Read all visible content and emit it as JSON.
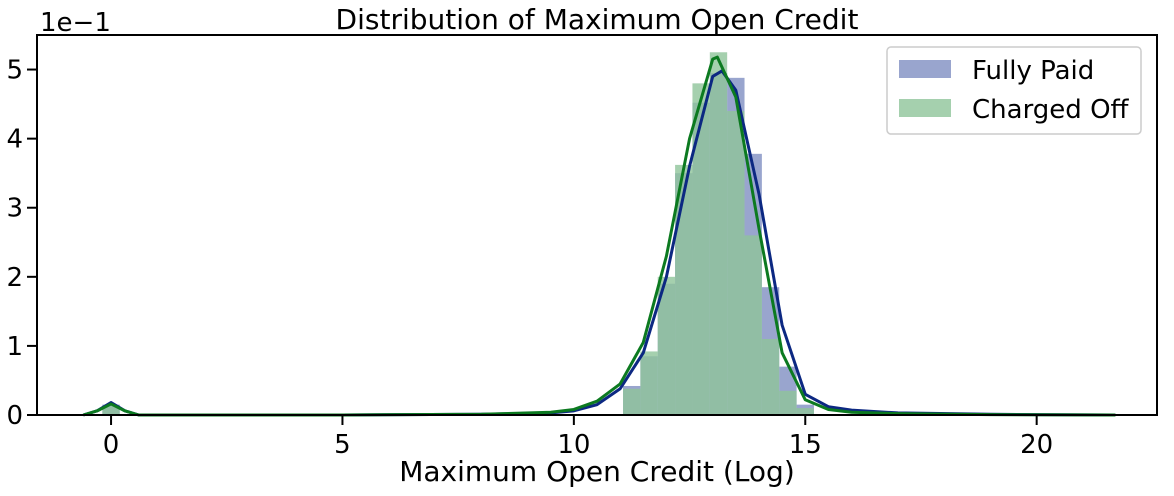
{
  "chart_data": {
    "type": "histogram",
    "title": "Distribution of Maximum Open Credit",
    "xlabel": "Maximum Open Credit (Log)",
    "ylabel": "",
    "y_offset_label": "1e−1",
    "xlim": [
      -1.6,
      22.6
    ],
    "ylim": [
      0,
      5.5
    ],
    "x_ticks": [
      0,
      5,
      10,
      15,
      20
    ],
    "y_ticks": [
      0,
      1,
      2,
      3,
      4,
      5
    ],
    "grid": false,
    "legend_position": "top-right",
    "series": [
      {
        "name": "Fully Paid",
        "color": "#7f8fc2",
        "kde_color": "#0c2882",
        "bin_width": 0.375,
        "bins": [
          {
            "x": 0.0,
            "y": 0.15
          },
          {
            "x": 11.25,
            "y": 0.42
          },
          {
            "x": 11.625,
            "y": 0.85
          },
          {
            "x": 12.0,
            "y": 1.9
          },
          {
            "x": 12.375,
            "y": 3.5
          },
          {
            "x": 12.75,
            "y": 4.52
          },
          {
            "x": 13.125,
            "y": 4.95
          },
          {
            "x": 13.5,
            "y": 4.88
          },
          {
            "x": 13.875,
            "y": 3.78
          },
          {
            "x": 14.25,
            "y": 1.85
          },
          {
            "x": 14.625,
            "y": 0.7
          },
          {
            "x": 15.0,
            "y": 0.15
          }
        ],
        "kde": [
          {
            "x": -0.6,
            "y": 0.0
          },
          {
            "x": -0.3,
            "y": 0.06
          },
          {
            "x": 0.0,
            "y": 0.18
          },
          {
            "x": 0.3,
            "y": 0.06
          },
          {
            "x": 0.6,
            "y": 0.0
          },
          {
            "x": 5.0,
            "y": 0.0
          },
          {
            "x": 8.0,
            "y": 0.01
          },
          {
            "x": 9.5,
            "y": 0.03
          },
          {
            "x": 10.0,
            "y": 0.06
          },
          {
            "x": 10.5,
            "y": 0.15
          },
          {
            "x": 11.0,
            "y": 0.38
          },
          {
            "x": 11.5,
            "y": 0.9
          },
          {
            "x": 12.0,
            "y": 2.0
          },
          {
            "x": 12.5,
            "y": 3.6
          },
          {
            "x": 13.0,
            "y": 4.9
          },
          {
            "x": 13.2,
            "y": 4.98
          },
          {
            "x": 13.5,
            "y": 4.7
          },
          {
            "x": 14.0,
            "y": 3.2
          },
          {
            "x": 14.5,
            "y": 1.3
          },
          {
            "x": 15.0,
            "y": 0.3
          },
          {
            "x": 15.5,
            "y": 0.12
          },
          {
            "x": 16.0,
            "y": 0.07
          },
          {
            "x": 17.0,
            "y": 0.03
          },
          {
            "x": 19.0,
            "y": 0.01
          },
          {
            "x": 21.7,
            "y": 0.0
          }
        ]
      },
      {
        "name": "Charged Off",
        "color": "#8fc49a",
        "kde_color": "#0c7a20",
        "bin_width": 0.375,
        "bins": [
          {
            "x": 0.0,
            "y": 0.14
          },
          {
            "x": 11.25,
            "y": 0.38
          },
          {
            "x": 11.625,
            "y": 0.92
          },
          {
            "x": 12.0,
            "y": 2.0
          },
          {
            "x": 12.375,
            "y": 3.62
          },
          {
            "x": 12.75,
            "y": 4.8
          },
          {
            "x": 13.125,
            "y": 5.25
          },
          {
            "x": 13.5,
            "y": 4.4
          },
          {
            "x": 13.875,
            "y": 2.6
          },
          {
            "x": 14.25,
            "y": 1.1
          },
          {
            "x": 14.625,
            "y": 0.35
          },
          {
            "x": 15.0,
            "y": 0.1
          }
        ],
        "kde": [
          {
            "x": -0.6,
            "y": 0.0
          },
          {
            "x": -0.3,
            "y": 0.06
          },
          {
            "x": 0.0,
            "y": 0.16
          },
          {
            "x": 0.3,
            "y": 0.06
          },
          {
            "x": 0.6,
            "y": 0.0
          },
          {
            "x": 5.0,
            "y": 0.0
          },
          {
            "x": 8.0,
            "y": 0.01
          },
          {
            "x": 9.5,
            "y": 0.04
          },
          {
            "x": 10.0,
            "y": 0.08
          },
          {
            "x": 10.5,
            "y": 0.2
          },
          {
            "x": 11.0,
            "y": 0.45
          },
          {
            "x": 11.5,
            "y": 1.05
          },
          {
            "x": 12.0,
            "y": 2.3
          },
          {
            "x": 12.5,
            "y": 4.0
          },
          {
            "x": 13.0,
            "y": 5.15
          },
          {
            "x": 13.1,
            "y": 5.18
          },
          {
            "x": 13.5,
            "y": 4.6
          },
          {
            "x": 14.0,
            "y": 2.7
          },
          {
            "x": 14.5,
            "y": 0.9
          },
          {
            "x": 15.0,
            "y": 0.22
          },
          {
            "x": 15.5,
            "y": 0.08
          },
          {
            "x": 16.0,
            "y": 0.04
          },
          {
            "x": 17.0,
            "y": 0.02
          },
          {
            "x": 19.0,
            "y": 0.005
          },
          {
            "x": 21.7,
            "y": 0.0
          }
        ]
      }
    ]
  }
}
